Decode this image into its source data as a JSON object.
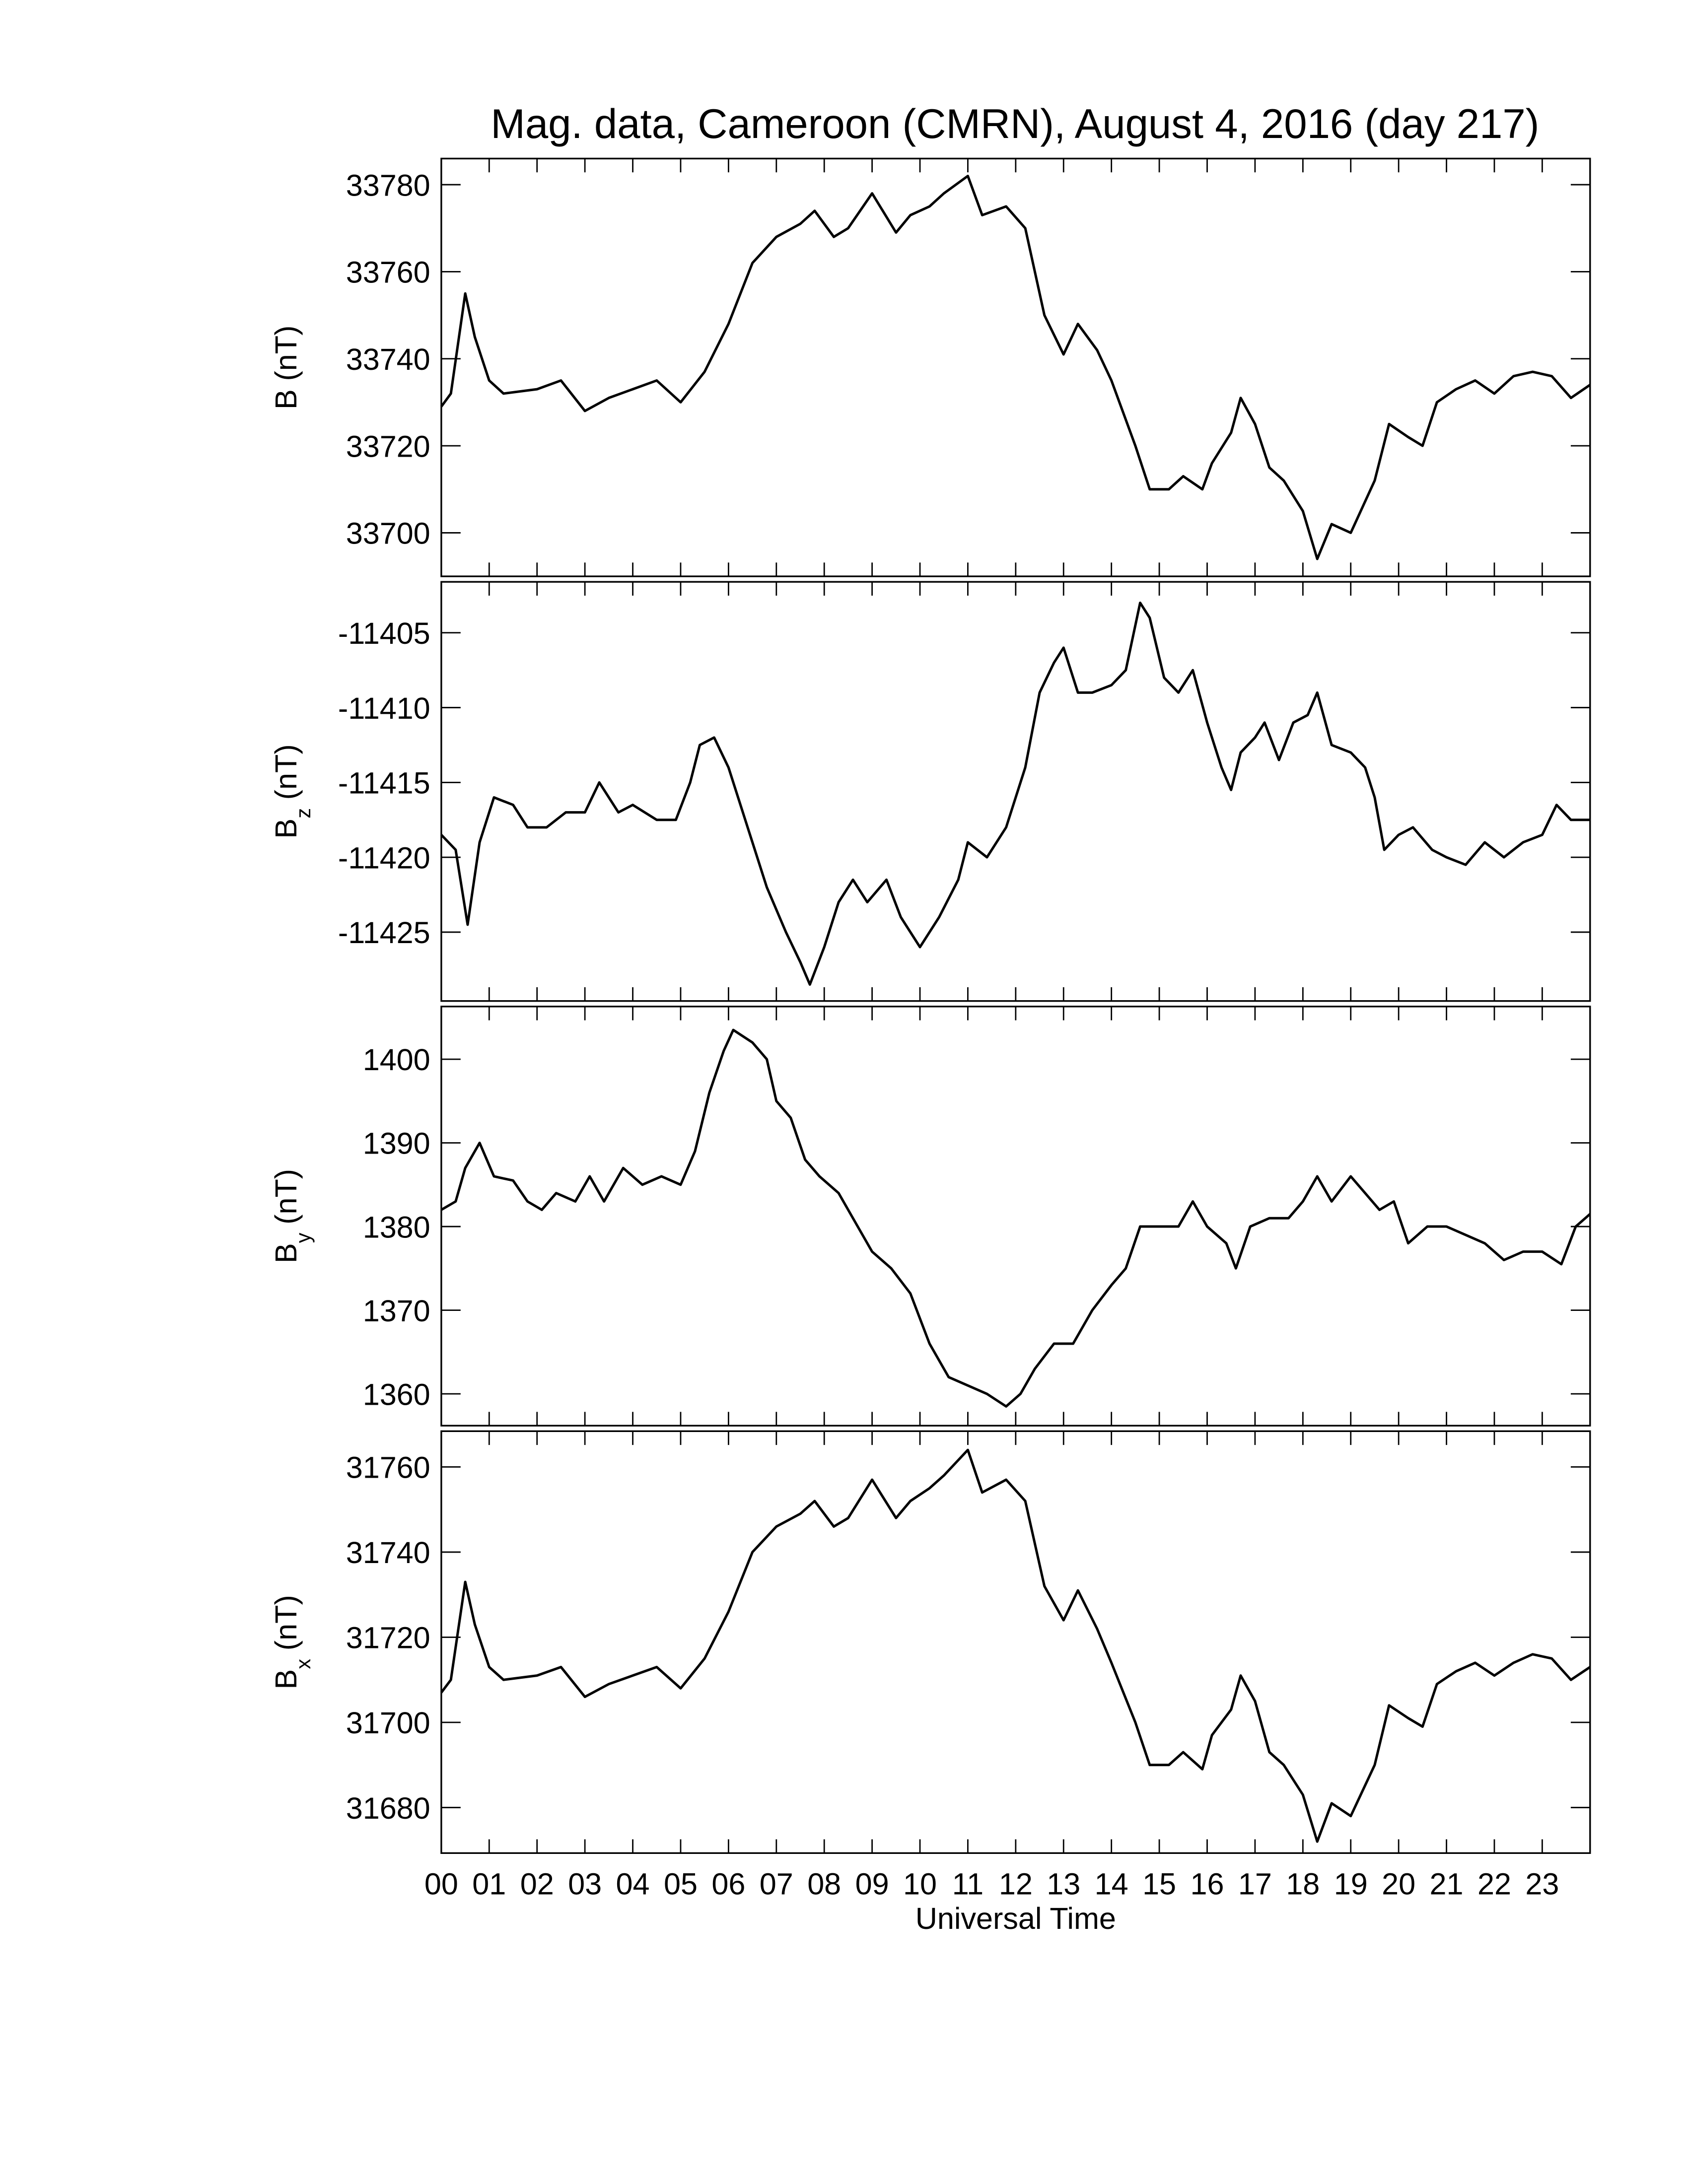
{
  "chart_data": [
    {
      "type": "line",
      "title": "Mag. data, Cameroon (CMRN), August 4, 2016 (day 217)",
      "ylabel": "B",
      "ylabel_unit": "(nT)",
      "color": "#000000",
      "xlim": [
        0,
        24
      ],
      "ylim": [
        33690,
        33786
      ],
      "yticks": [
        33700,
        33720,
        33740,
        33760,
        33780
      ],
      "x": [
        0,
        0.2,
        0.5,
        0.7,
        1.0,
        1.3,
        2.0,
        2.5,
        3.0,
        3.5,
        4.0,
        4.5,
        5.0,
        5.5,
        6.0,
        6.5,
        7.0,
        7.5,
        7.8,
        8.2,
        8.5,
        9.0,
        9.5,
        9.8,
        10.2,
        10.5,
        11.0,
        11.3,
        11.8,
        12.2,
        12.6,
        13.0,
        13.3,
        13.7,
        14.0,
        14.5,
        14.8,
        15.2,
        15.5,
        15.9,
        16.1,
        16.5,
        16.7,
        17.0,
        17.3,
        17.6,
        18.0,
        18.3,
        18.6,
        19.0,
        19.5,
        19.8,
        20.2,
        20.5,
        20.8,
        21.2,
        21.6,
        22.0,
        22.4,
        22.8,
        23.2,
        23.6,
        24
      ],
      "values": [
        33729,
        33732,
        33755,
        33745,
        33735,
        33732,
        33733,
        33735,
        33728,
        33731,
        33733,
        33735,
        33730,
        33737,
        33748,
        33762,
        33768,
        33771,
        33774,
        33768,
        33770,
        33778,
        33769,
        33773,
        33775,
        33778,
        33782,
        33773,
        33775,
        33770,
        33750,
        33741,
        33748,
        33742,
        33735,
        33720,
        33710,
        33710,
        33713,
        33710,
        33716,
        33723,
        33731,
        33725,
        33715,
        33712,
        33705,
        33694,
        33702,
        33700,
        33712,
        33725,
        33722,
        33720,
        33730,
        33733,
        33735,
        33732,
        33736,
        33737,
        33736,
        33731,
        33734
      ]
    },
    {
      "type": "line",
      "ylabel": "B",
      "ylabel_sub": "z",
      "ylabel_unit": "(nT)",
      "color": "#000000",
      "xlim": [
        0,
        24
      ],
      "ylim": [
        -11429.6,
        -11401.6
      ],
      "yticks": [
        -11425,
        -11420,
        -11415,
        -11410,
        -11405
      ],
      "x": [
        0,
        0.3,
        0.55,
        0.8,
        1.1,
        1.5,
        1.8,
        2.2,
        2.6,
        3.0,
        3.3,
        3.7,
        4.0,
        4.5,
        4.9,
        5.2,
        5.4,
        5.7,
        6.0,
        6.4,
        6.8,
        7.2,
        7.5,
        7.7,
        8.0,
        8.3,
        8.6,
        8.9,
        9.3,
        9.6,
        10.0,
        10.4,
        10.8,
        11.0,
        11.4,
        11.8,
        12.2,
        12.5,
        12.8,
        13.0,
        13.3,
        13.6,
        14.0,
        14.3,
        14.6,
        14.8,
        15.1,
        15.4,
        15.7,
        16.0,
        16.3,
        16.5,
        16.7,
        17.0,
        17.2,
        17.5,
        17.8,
        18.1,
        18.3,
        18.6,
        19.0,
        19.3,
        19.5,
        19.7,
        20.0,
        20.3,
        20.7,
        21.0,
        21.4,
        21.8,
        22.2,
        22.6,
        23.0,
        23.3,
        23.6,
        24
      ],
      "values": [
        -11418.5,
        -11419.5,
        -11424.5,
        -11419,
        -11416,
        -11416.5,
        -11418,
        -11418,
        -11417,
        -11417,
        -11415,
        -11417,
        -11416.5,
        -11417.5,
        -11417.5,
        -11415,
        -11412.5,
        -11412,
        -11414,
        -11418,
        -11422,
        -11425,
        -11427,
        -11428.5,
        -11426,
        -11423,
        -11421.5,
        -11423,
        -11421.5,
        -11424,
        -11426,
        -11424,
        -11421.5,
        -11419,
        -11420,
        -11418,
        -11414,
        -11409,
        -11407,
        -11406,
        -11409,
        -11409,
        -11408.5,
        -11407.5,
        -11403,
        -11404,
        -11408,
        -11409,
        -11407.5,
        -11411,
        -11414,
        -11415.5,
        -11413,
        -11412,
        -11411,
        -11413.5,
        -11411,
        -11410.5,
        -11409,
        -11412.5,
        -11413,
        -11414,
        -11416,
        -11419.5,
        -11418.5,
        -11418,
        -11419.5,
        -11420,
        -11420.5,
        -11419,
        -11420,
        -11419,
        -11418.5,
        -11416.5,
        -11417.5,
        -11417.5
      ]
    },
    {
      "type": "line",
      "ylabel": "B",
      "ylabel_sub": "y",
      "ylabel_unit": "(nT)",
      "color": "#000000",
      "xlim": [
        0,
        24
      ],
      "ylim": [
        1356.2,
        1406.3
      ],
      "yticks": [
        1360,
        1370,
        1380,
        1390,
        1400
      ],
      "x": [
        0,
        0.3,
        0.5,
        0.8,
        1.1,
        1.5,
        1.8,
        2.1,
        2.4,
        2.8,
        3.1,
        3.4,
        3.8,
        4.2,
        4.6,
        5.0,
        5.3,
        5.6,
        5.9,
        6.1,
        6.5,
        6.8,
        7.0,
        7.3,
        7.6,
        7.9,
        8.3,
        8.7,
        9.0,
        9.4,
        9.8,
        10.2,
        10.6,
        11.0,
        11.4,
        11.8,
        12.1,
        12.4,
        12.8,
        13.2,
        13.6,
        14.0,
        14.3,
        14.6,
        15.0,
        15.4,
        15.7,
        16.0,
        16.4,
        16.6,
        16.9,
        17.3,
        17.7,
        18.0,
        18.3,
        18.6,
        19.0,
        19.3,
        19.6,
        19.9,
        20.2,
        20.6,
        21.0,
        21.4,
        21.8,
        22.2,
        22.6,
        23.0,
        23.4,
        23.7,
        24
      ],
      "values": [
        1382,
        1383,
        1387,
        1390,
        1386,
        1385.5,
        1383,
        1382,
        1384,
        1383,
        1386,
        1383,
        1387,
        1385,
        1386,
        1385,
        1389,
        1396,
        1401,
        1403.5,
        1402,
        1400,
        1395,
        1393,
        1388,
        1386,
        1384,
        1380,
        1377,
        1375,
        1372,
        1366,
        1362,
        1361,
        1360,
        1358.5,
        1360,
        1363,
        1366,
        1366,
        1370,
        1373,
        1375,
        1380,
        1380,
        1380,
        1383,
        1380,
        1378,
        1375,
        1380,
        1381,
        1381,
        1383,
        1386,
        1383,
        1386,
        1384,
        1382,
        1383,
        1378,
        1380,
        1380,
        1379,
        1378,
        1376,
        1377,
        1377,
        1375.5,
        1380,
        1381.5
      ]
    },
    {
      "type": "line",
      "ylabel": "B",
      "ylabel_sub": "x",
      "ylabel_unit": "(nT)",
      "color": "#000000",
      "xlabel": "Universal Time",
      "xlim": [
        0,
        24
      ],
      "ylim": [
        31669.3,
        31768.4
      ],
      "yticks": [
        31680,
        31700,
        31720,
        31740,
        31760
      ],
      "xticks": [
        {
          "value": 0,
          "label": "00"
        },
        {
          "value": 1,
          "label": "01"
        },
        {
          "value": 2,
          "label": "02"
        },
        {
          "value": 3,
          "label": "03"
        },
        {
          "value": 4,
          "label": "04"
        },
        {
          "value": 5,
          "label": "05"
        },
        {
          "value": 6,
          "label": "06"
        },
        {
          "value": 7,
          "label": "07"
        },
        {
          "value": 8,
          "label": "08"
        },
        {
          "value": 9,
          "label": "09"
        },
        10,
        11,
        12,
        13,
        14,
        15,
        16,
        17,
        18,
        19,
        20,
        21,
        22,
        23
      ],
      "x": [
        0,
        0.2,
        0.5,
        0.7,
        1.0,
        1.3,
        2.0,
        2.5,
        3.0,
        3.5,
        4.0,
        4.5,
        5.0,
        5.5,
        6.0,
        6.5,
        7.0,
        7.5,
        7.8,
        8.2,
        8.5,
        9.0,
        9.5,
        9.8,
        10.2,
        10.5,
        11.0,
        11.3,
        11.8,
        12.2,
        12.6,
        13.0,
        13.3,
        13.7,
        14.0,
        14.5,
        14.8,
        15.2,
        15.5,
        15.9,
        16.1,
        16.5,
        16.7,
        17.0,
        17.3,
        17.6,
        18.0,
        18.3,
        18.6,
        19.0,
        19.5,
        19.8,
        20.2,
        20.5,
        20.8,
        21.2,
        21.6,
        22.0,
        22.4,
        22.8,
        23.2,
        23.6,
        24
      ],
      "values": [
        31707,
        31710,
        31733,
        31723,
        31713,
        31710,
        31711,
        31713,
        31706,
        31709,
        31711,
        31713,
        31708,
        31715,
        31726,
        31740,
        31746,
        31749,
        31752,
        31746,
        31748,
        31757,
        31748,
        31752,
        31755,
        31758,
        31764,
        31754,
        31757,
        31752,
        31732,
        31724,
        31731,
        31722,
        31714,
        31700,
        31690,
        31690,
        31693,
        31689,
        31697,
        31703,
        31711,
        31705,
        31693,
        31690,
        31683,
        31672,
        31681,
        31678,
        31690,
        31704,
        31701,
        31699,
        31709,
        31712,
        31714,
        31711,
        31714,
        31716,
        31715,
        31710,
        31713
      ]
    }
  ]
}
